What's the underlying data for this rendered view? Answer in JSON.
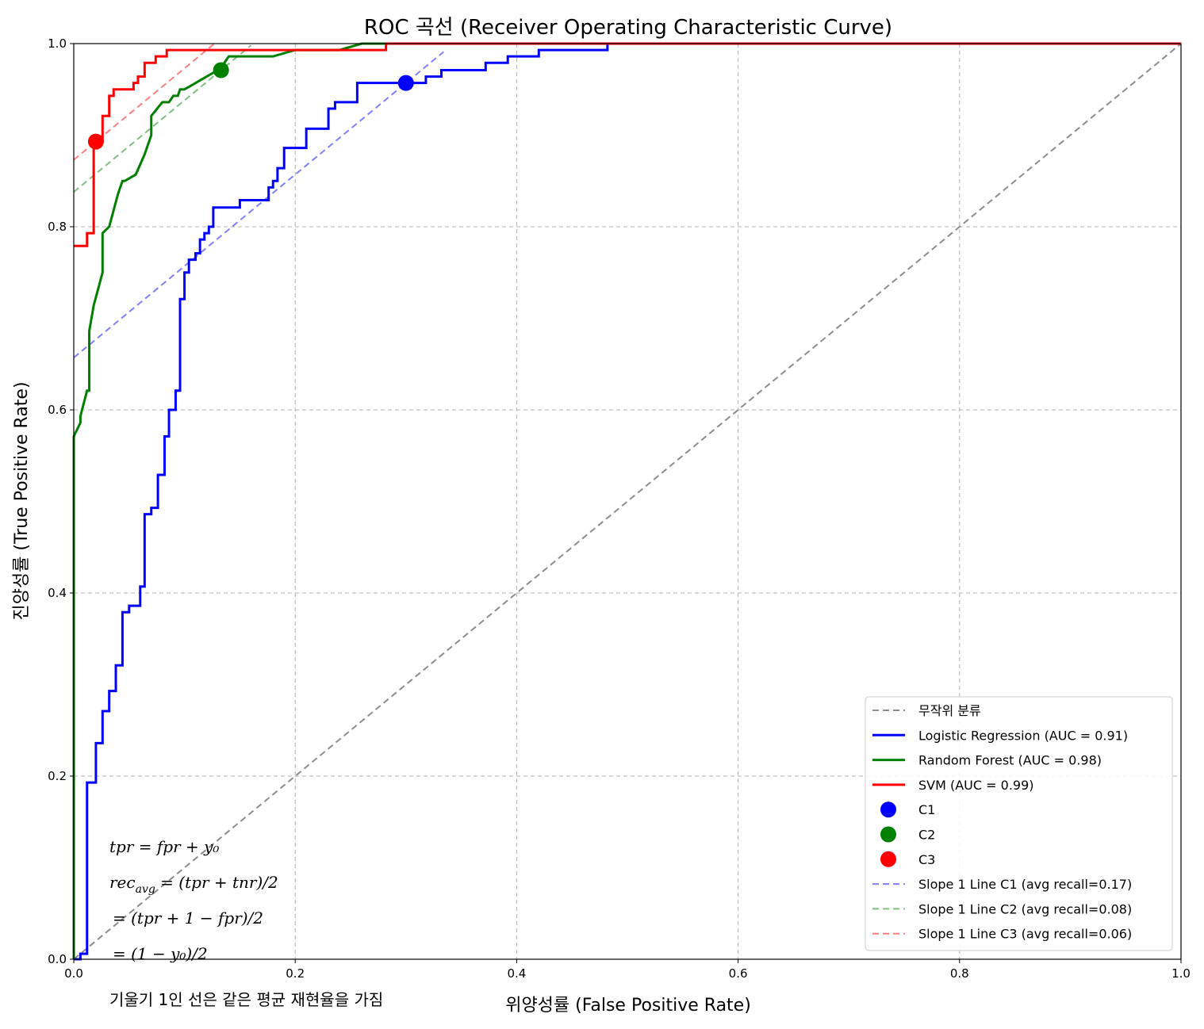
{
  "chart_data": {
    "type": "line",
    "title": "ROC 곡선 (Receiver Operating Characteristic Curve)",
    "xlabel": "위양성률 (False Positive Rate)",
    "ylabel": "진양성률 (True Positive Rate)",
    "xlim": [
      0,
      1
    ],
    "ylim": [
      0,
      1
    ],
    "xticks": [
      "0.0",
      "0.2",
      "0.4",
      "0.6",
      "0.8",
      "1.0"
    ],
    "yticks": [
      "0.0",
      "0.2",
      "0.4",
      "0.6",
      "0.8",
      "1.0"
    ],
    "grid": true,
    "legend_position": "lower right",
    "series": [
      {
        "name": "무작위 분류",
        "color": "#8c8c8c",
        "style": "dashed",
        "step": false,
        "x": [
          0,
          1
        ],
        "y": [
          0,
          1
        ]
      },
      {
        "name": "Logistic Regression (AUC = 0.91)",
        "color": "#0000ff",
        "style": "solid",
        "step": true,
        "x": [
          0,
          0.006,
          0.012,
          0.02,
          0.026,
          0.032,
          0.038,
          0.044,
          0.05,
          0.06,
          0.064,
          0.07,
          0.076,
          0.082,
          0.086,
          0.092,
          0.096,
          0.1,
          0.104,
          0.11,
          0.114,
          0.118,
          0.122,
          0.126,
          0.13,
          0.134,
          0.138,
          0.15,
          0.158,
          0.176,
          0.18,
          0.184,
          0.19,
          0.194,
          0.2,
          0.21,
          0.216,
          0.23,
          0.236,
          0.256,
          0.3,
          0.318,
          0.332,
          0.372,
          0.392,
          0.42,
          0.482,
          0.49,
          0.54,
          0.62,
          0.7,
          0.8,
          1.0
        ],
        "y": [
          0,
          0.006,
          0.193,
          0.236,
          0.271,
          0.293,
          0.321,
          0.379,
          0.386,
          0.407,
          0.486,
          0.493,
          0.529,
          0.571,
          0.6,
          0.621,
          0.721,
          0.75,
          0.764,
          0.771,
          0.786,
          0.793,
          0.8,
          0.821,
          0.821,
          0.821,
          0.821,
          0.829,
          0.829,
          0.843,
          0.85,
          0.864,
          0.886,
          0.886,
          0.886,
          0.907,
          0.907,
          0.929,
          0.936,
          0.957,
          0.957,
          0.964,
          0.971,
          0.979,
          0.986,
          0.993,
          1.0,
          1.0,
          1.0,
          1.0,
          1.0,
          1.0,
          1.0
        ]
      },
      {
        "name": "Random Forest (AUC = 0.98)",
        "color": "#008000",
        "style": "solid",
        "step": false,
        "x": [
          0,
          0,
          0.006,
          0.006,
          0.012,
          0.014,
          0.014,
          0.018,
          0.026,
          0.026,
          0.032,
          0.04,
          0.044,
          0.046,
          0.056,
          0.064,
          0.07,
          0.07,
          0.08,
          0.086,
          0.09,
          0.094,
          0.096,
          0.1,
          0.11,
          0.12,
          0.13,
          0.136,
          0.14,
          0.16,
          0.18,
          0.2,
          0.22,
          0.24,
          0.26,
          0.28,
          0.3,
          0.4,
          0.5,
          1.0
        ],
        "y": [
          0,
          0.571,
          0.586,
          0.593,
          0.621,
          0.621,
          0.686,
          0.714,
          0.75,
          0.793,
          0.8,
          0.836,
          0.85,
          0.85,
          0.857,
          0.879,
          0.9,
          0.921,
          0.936,
          0.936,
          0.943,
          0.943,
          0.95,
          0.95,
          0.957,
          0.964,
          0.971,
          0.979,
          0.986,
          0.986,
          0.986,
          0.993,
          0.993,
          0.993,
          1.0,
          1.0,
          1.0,
          1.0,
          1.0,
          1.0
        ]
      },
      {
        "name": "SVM (AUC = 0.99)",
        "color": "#ff0000",
        "style": "solid",
        "step": true,
        "x": [
          0,
          0.006,
          0.012,
          0.018,
          0.022,
          0.026,
          0.032,
          0.036,
          0.05,
          0.054,
          0.058,
          0.064,
          0.074,
          0.084,
          0.094,
          0.1,
          0.2,
          0.282,
          0.4,
          0.6,
          1.0
        ],
        "y": [
          0.779,
          0.779,
          0.793,
          0.893,
          0.893,
          0.921,
          0.943,
          0.95,
          0.95,
          0.957,
          0.964,
          0.979,
          0.986,
          0.993,
          0.993,
          0.993,
          0.993,
          1.0,
          1.0,
          1.0,
          1.0
        ]
      }
    ],
    "points": [
      {
        "name": "C1",
        "color": "#0000ff",
        "x": 0.3,
        "y": 0.957
      },
      {
        "name": "C2",
        "color": "#008000",
        "x": 0.133,
        "y": 0.971
      },
      {
        "name": "C3",
        "color": "#ff0000",
        "x": 0.02,
        "y": 0.893
      }
    ],
    "slope_lines": [
      {
        "name": "Slope 1 Line C1 (avg recall=0.17)",
        "color": "#0000ff",
        "x": [
          0,
          0.334
        ],
        "y": [
          0.657,
          0.991
        ]
      },
      {
        "name": "Slope 1 Line C2 (avg recall=0.08)",
        "color": "#008000",
        "x": [
          0,
          0.16
        ],
        "y": [
          0.838,
          0.998
        ]
      },
      {
        "name": "Slope 1 Line C3 (avg recall=0.06)",
        "color": "#ff0000",
        "x": [
          0,
          0.127
        ],
        "y": [
          0.873,
          1.0
        ]
      }
    ],
    "annotations": {
      "formula_1": "tpr = fpr + y₀",
      "formula_2": "rec",
      "formula_2_sub": "avg",
      "formula_2_rest": " = (tpr + tnr)/2",
      "formula_3": "= (tpr + 1 − fpr)/2",
      "formula_4": "= (1 − y₀)/2",
      "note": "기울기 1인 선은 같은 평균 재현율을 가짐"
    }
  }
}
